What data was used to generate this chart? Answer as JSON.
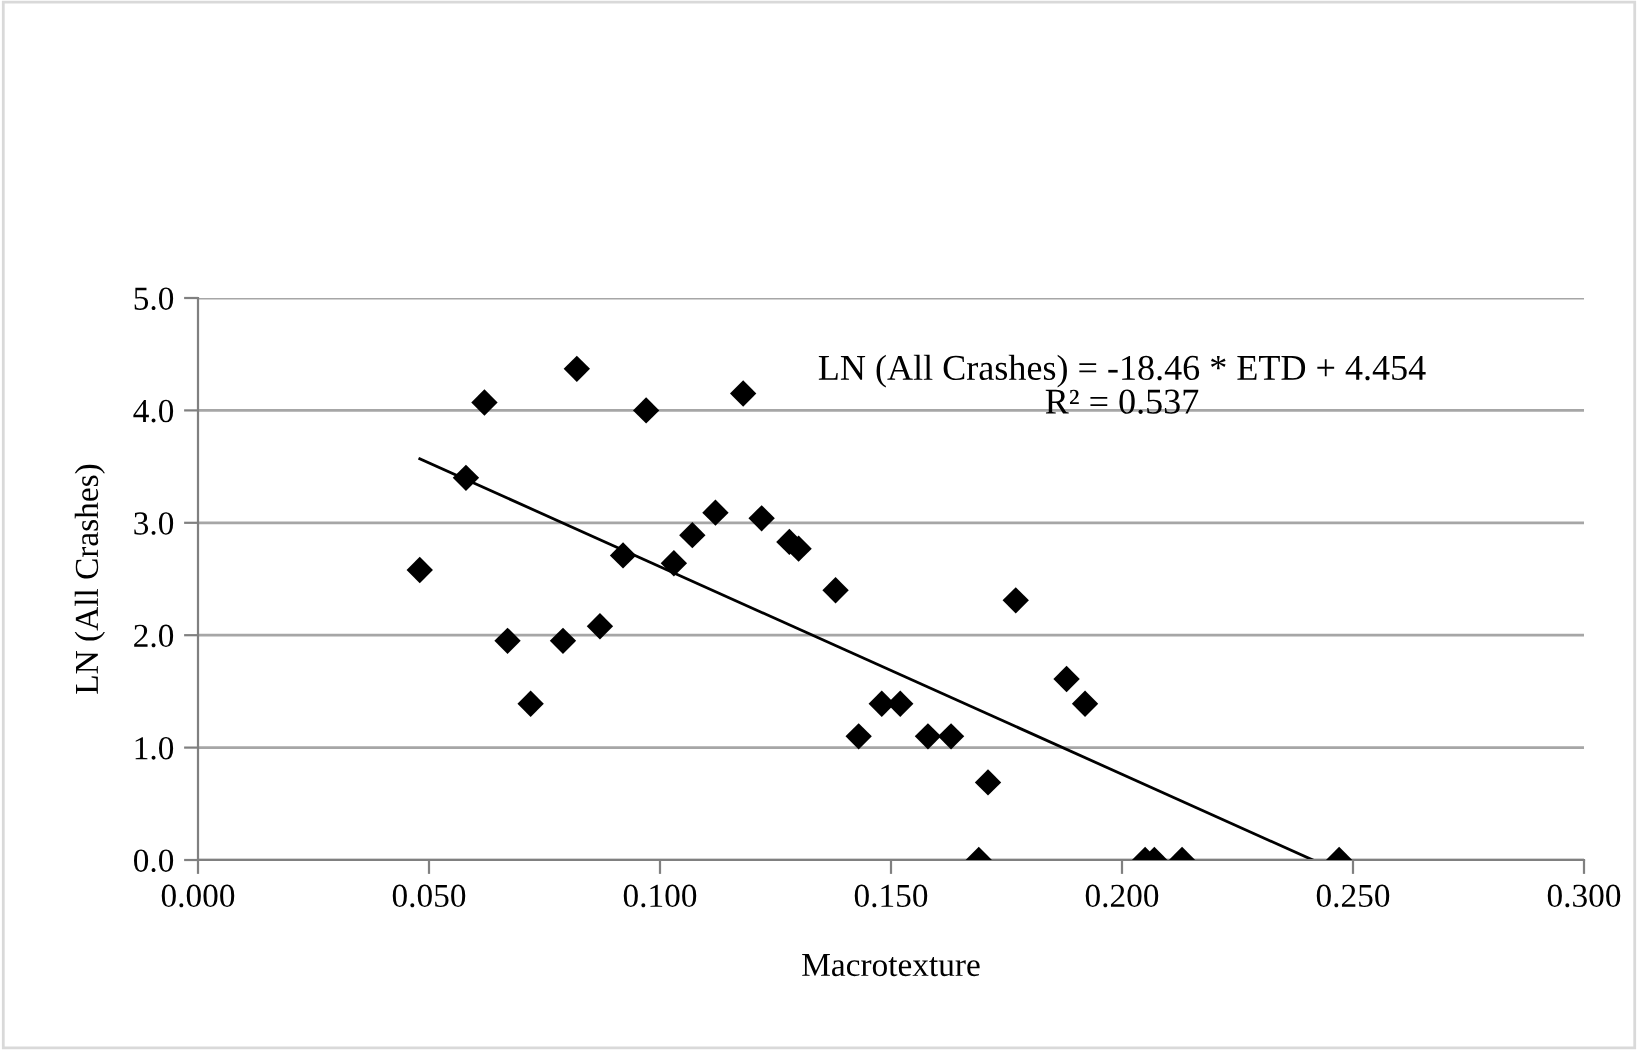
{
  "chart_data": {
    "type": "scatter",
    "xlabel": "Macrotexture",
    "ylabel": "LN (All Crashes)",
    "xlim": [
      0.0,
      0.3
    ],
    "xticks": [
      {
        "value": 0.0,
        "label": "0.000"
      },
      {
        "value": 0.05,
        "label": "0.050"
      },
      {
        "value": 0.1,
        "label": "0.100"
      },
      {
        "value": 0.15,
        "label": "0.150"
      },
      {
        "value": 0.2,
        "label": "0.200"
      },
      {
        "value": 0.25,
        "label": "0.250"
      },
      {
        "value": 0.3,
        "label": "0.300"
      }
    ],
    "ylim": [
      0.0,
      5.0
    ],
    "yticks": [
      {
        "value": 0.0,
        "label": "0.0"
      },
      {
        "value": 1.0,
        "label": "1.0"
      },
      {
        "value": 2.0,
        "label": "2.0"
      },
      {
        "value": 3.0,
        "label": "3.0"
      },
      {
        "value": 4.0,
        "label": "4.0"
      },
      {
        "value": 5.0,
        "label": "5.0"
      }
    ],
    "grid": "y",
    "legend": false,
    "series": [
      {
        "marker": "diamond",
        "color": "#000000",
        "x": [
          0.048,
          0.058,
          0.062,
          0.067,
          0.072,
          0.079,
          0.082,
          0.087,
          0.092,
          0.097,
          0.103,
          0.107,
          0.112,
          0.118,
          0.122,
          0.128,
          0.13,
          0.138,
          0.143,
          0.148,
          0.152,
          0.158,
          0.163,
          0.169,
          0.171,
          0.177,
          0.188,
          0.192,
          0.205,
          0.207,
          0.213,
          0.247
        ],
        "values": [
          2.58,
          3.4,
          4.07,
          1.95,
          1.39,
          1.95,
          4.37,
          2.08,
          2.71,
          4.0,
          2.64,
          2.89,
          3.09,
          4.15,
          3.04,
          2.83,
          2.77,
          2.4,
          1.1,
          1.39,
          1.39,
          1.1,
          1.1,
          0.0,
          0.69,
          2.31,
          1.61,
          1.39,
          0.0,
          0.0,
          0.0,
          0.0
        ]
      },
      {
        "type": "line",
        "color": "#000000",
        "x": [
          0.048,
          0.2413
        ],
        "values": [
          3.57,
          0.0
        ]
      }
    ],
    "annotations": [
      "LN (All Crashes) = -18.46 * ETD + 4.454",
      "R² = 0.537"
    ]
  }
}
